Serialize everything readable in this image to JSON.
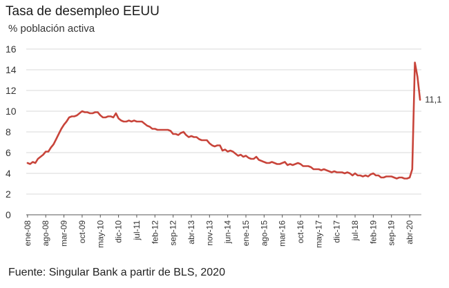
{
  "title": "Tasa de desempleo EEUU",
  "subtitle": "% población activa",
  "source": "Fuente: Singular Bank a partir de BLS, 2020",
  "end_label": "11,1",
  "colors": {
    "line": "#c8443a",
    "grid": "#d9d9d9",
    "axis": "#555555"
  },
  "chart_data": {
    "type": "line",
    "title": "Tasa de desempleo EEUU",
    "ylabel": "% población activa",
    "xlabel": "",
    "ylim": [
      0,
      16
    ],
    "yticks": [
      "0",
      "2",
      "4",
      "6",
      "8",
      "10",
      "12",
      "14",
      "16"
    ],
    "grid": "horizontal",
    "x_tick_labels": [
      "ene-08",
      "ago-08",
      "mar-09",
      "oct-09",
      "may-10",
      "dic-10",
      "jul-11",
      "feb-12",
      "sep-12",
      "abr-13",
      "nov-13",
      "jun-14",
      "ene-15",
      "ago-15",
      "mar-16",
      "oct-16",
      "may-17",
      "dic-17",
      "jul-18",
      "feb-19",
      "sep-19",
      "abr-20"
    ],
    "series": [
      {
        "start": "ene-08",
        "frequency": "monthly",
        "values": [
          5.0,
          4.9,
          5.1,
          5.0,
          5.4,
          5.6,
          5.8,
          6.1,
          6.1,
          6.5,
          6.8,
          7.3,
          7.8,
          8.3,
          8.7,
          9.0,
          9.4,
          9.5,
          9.5,
          9.6,
          9.8,
          10.0,
          9.9,
          9.9,
          9.8,
          9.8,
          9.9,
          9.9,
          9.6,
          9.4,
          9.4,
          9.5,
          9.5,
          9.4,
          9.8,
          9.3,
          9.1,
          9.0,
          9.0,
          9.1,
          9.0,
          9.1,
          9.0,
          9.0,
          9.0,
          8.8,
          8.6,
          8.5,
          8.3,
          8.3,
          8.2,
          8.2,
          8.2,
          8.2,
          8.2,
          8.1,
          7.8,
          7.8,
          7.7,
          7.9,
          8.0,
          7.7,
          7.5,
          7.6,
          7.5,
          7.5,
          7.3,
          7.2,
          7.2,
          7.2,
          6.9,
          6.7,
          6.6,
          6.7,
          6.7,
          6.2,
          6.3,
          6.1,
          6.2,
          6.1,
          5.9,
          5.7,
          5.8,
          5.6,
          5.7,
          5.5,
          5.4,
          5.4,
          5.6,
          5.3,
          5.2,
          5.1,
          5.0,
          5.0,
          5.1,
          5.0,
          4.9,
          4.9,
          5.0,
          5.1,
          4.8,
          4.9,
          4.8,
          4.9,
          5.0,
          4.9,
          4.7,
          4.7,
          4.7,
          4.6,
          4.4,
          4.4,
          4.4,
          4.3,
          4.4,
          4.3,
          4.2,
          4.1,
          4.2,
          4.1,
          4.1,
          4.1,
          4.0,
          4.1,
          4.0,
          3.8,
          4.0,
          3.8,
          3.8,
          3.7,
          3.8,
          3.7,
          3.9,
          4.0,
          3.8,
          3.8,
          3.6,
          3.6,
          3.7,
          3.7,
          3.7,
          3.6,
          3.5,
          3.6,
          3.6,
          3.5,
          3.5,
          3.6,
          4.4,
          14.7,
          13.3,
          11.1
        ]
      }
    ]
  }
}
